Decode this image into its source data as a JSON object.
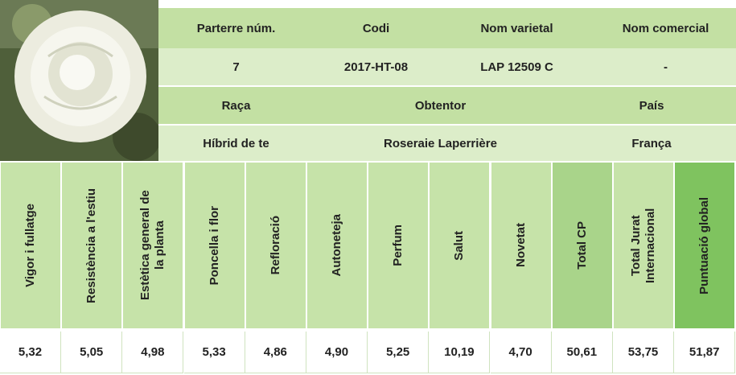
{
  "info": {
    "row1": [
      "Parterre núm.",
      "Codi",
      "Nom varietal",
      "Nom comercial"
    ],
    "row2": [
      "7",
      "2017-HT-08",
      "LAP 12509 C",
      "-"
    ],
    "row3": [
      "Raça",
      "Obtentor",
      "País"
    ],
    "row4": [
      "Híbrid de te",
      "Roseraie Laperrière",
      "França"
    ]
  },
  "scores": {
    "labels": [
      "Vigor i fullatge",
      "Resistència a l'estiu",
      "Estètica general de la planta",
      "Poncella i flor",
      "Refloració",
      "Autoneteja",
      "Perfum",
      "Salut",
      "Novetat",
      "Total CP",
      "Total Jurat Internacional",
      "Puntuació global"
    ],
    "values": [
      "5,32",
      "5,05",
      "4,98",
      "5,33",
      "4,86",
      "4,90",
      "5,25",
      "10,19",
      "4,70",
      "50,61",
      "53,75",
      "51,87"
    ]
  }
}
